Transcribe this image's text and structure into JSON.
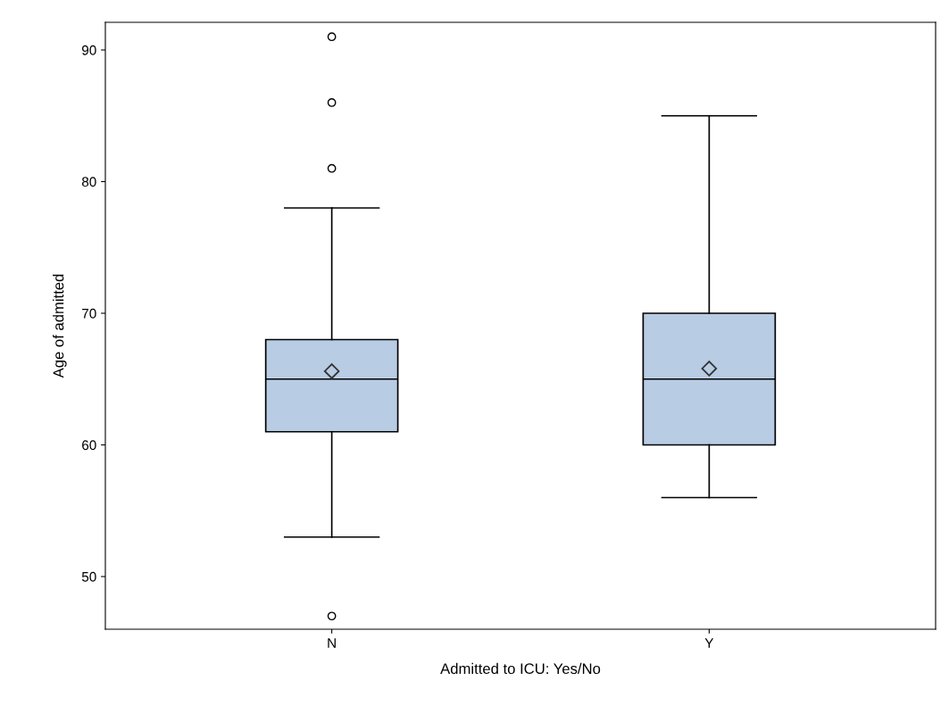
{
  "chart_data": {
    "type": "box",
    "xlabel": "Admitted to ICU: Yes/No",
    "ylabel": "Age of admitted",
    "categories": [
      "N",
      "Y"
    ],
    "color": "#b8cce4",
    "boxes": [
      {
        "low": 53,
        "q1": 61,
        "median": 65,
        "q3": 68,
        "high": 78,
        "mean": 65.6,
        "outliers": [
          91,
          86,
          81,
          47
        ]
      },
      {
        "low": 56,
        "q1": 60,
        "median": 65,
        "q3": 70,
        "high": 85,
        "mean": 65.8
      }
    ],
    "ylim": [
      46,
      92.1
    ],
    "yticks": [
      50,
      60,
      70,
      80,
      90
    ],
    "grid": false,
    "legend": false
  }
}
